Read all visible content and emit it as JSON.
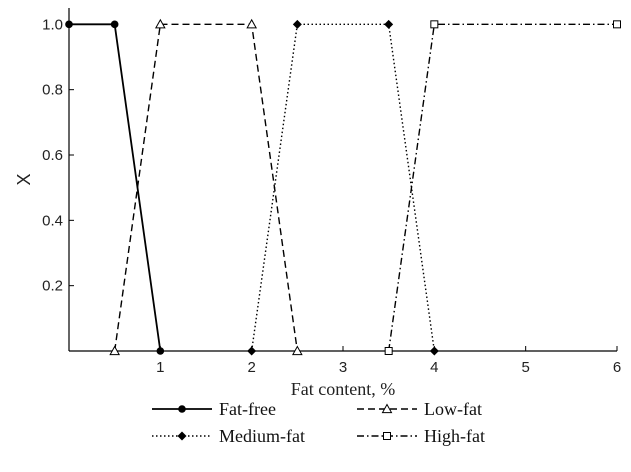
{
  "chart_data": {
    "type": "line",
    "xlabel": "Fat content, %",
    "ylabel": "X",
    "xlim": [
      0,
      6
    ],
    "ylim": [
      0,
      1.05
    ],
    "x_ticks": [
      1,
      2,
      3,
      4,
      5,
      6
    ],
    "x_tick_labels": [
      "1",
      "2",
      "3",
      "4",
      "5",
      "6"
    ],
    "y_ticks": [
      0.2,
      0.4,
      0.6,
      0.8,
      1.0
    ],
    "y_tick_labels": [
      "0.2",
      "0.4",
      "0.6",
      "0.8",
      "1.0"
    ],
    "grid": false,
    "legend": {
      "placement": "bottom",
      "columns": 2
    },
    "series": [
      {
        "name": "Fat-free",
        "line_style": "solid",
        "marker": "filled-circle",
        "x": [
          0,
          0.5,
          1
        ],
        "y": [
          1,
          1,
          0
        ]
      },
      {
        "name": "Low-fat",
        "line_style": "dashed",
        "marker": "open-triangle",
        "x": [
          0.5,
          1,
          2,
          2.5
        ],
        "y": [
          0,
          1,
          1,
          0
        ]
      },
      {
        "name": "Medium-fat",
        "line_style": "dotted",
        "marker": "filled-diamond",
        "x": [
          2,
          2.5,
          3.5,
          4
        ],
        "y": [
          0,
          1,
          1,
          0
        ]
      },
      {
        "name": "High-fat",
        "line_style": "dash-dot",
        "marker": "open-square",
        "x": [
          3.5,
          4,
          6
        ],
        "y": [
          0,
          1,
          1
        ]
      }
    ]
  }
}
